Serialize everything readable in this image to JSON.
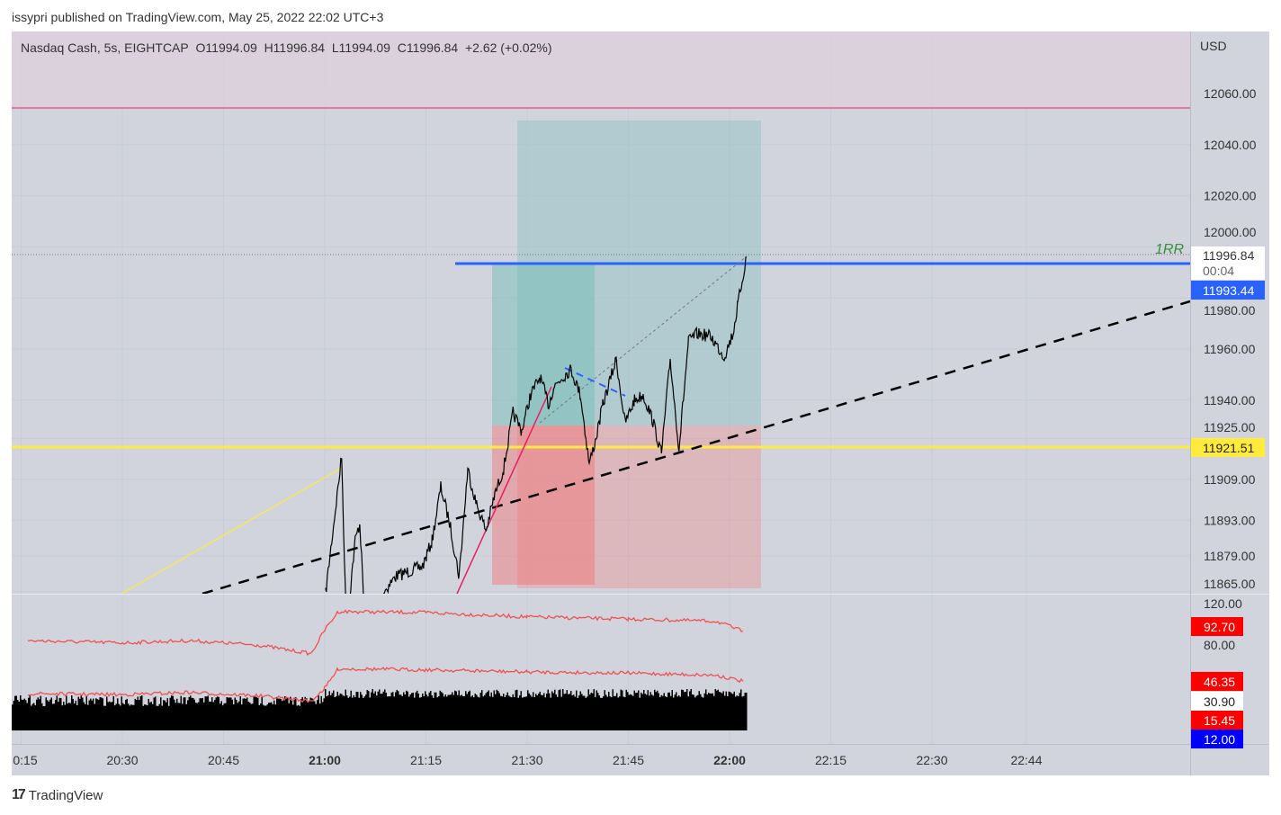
{
  "header": {
    "published": "issypri published on TradingView.com, May 25, 2022 22:02 UTC+3"
  },
  "legend": {
    "symbol": "Nasdaq Cash, 5s, EIGHTCAP",
    "open": "O11994.09",
    "high": "H11996.84",
    "low": "L11994.09",
    "close": "C11996.84",
    "change": "+2.62 (+0.02%)"
  },
  "footer": {
    "brand": "TradingView"
  },
  "colors": {
    "bg": "#d1d4dc",
    "yellow": "#ffeb3b",
    "blue": "#2962ff",
    "red": "#ff0000",
    "price": "#000000"
  },
  "chart_data": {
    "type": "line",
    "title": "Nasdaq Cash, 5s, EIGHTCAP",
    "currency": "USD",
    "x_unit": "minutes after 20:00",
    "xlim": [
      16,
      160
    ],
    "ylim": [
      11865,
      12080
    ],
    "x_ticks": [
      {
        "t": 15,
        "label": "0:15"
      },
      {
        "t": 30,
        "label": "20:30"
      },
      {
        "t": 45,
        "label": "20:45"
      },
      {
        "t": 60,
        "label": "21:00",
        "bold": true
      },
      {
        "t": 75,
        "label": "21:15"
      },
      {
        "t": 90,
        "label": "21:30"
      },
      {
        "t": 105,
        "label": "21:45"
      },
      {
        "t": 120,
        "label": "22:00",
        "bold": true
      },
      {
        "t": 135,
        "label": "22:15"
      },
      {
        "t": 150,
        "label": "22:30"
      },
      {
        "t": 164,
        "label": "22:44"
      }
    ],
    "y_ticks": [
      "12060.00",
      "12040.00",
      "12020.00",
      "12000.00",
      "11980.00",
      "11960.00",
      "11940.00",
      "11925.00",
      "11909.00",
      "11893.00",
      "11879.00",
      "11865.00"
    ],
    "price_series": {
      "x": [
        60.1,
        62.5,
        63.2,
        64.5,
        65.2,
        65.9,
        70.5,
        74.5,
        75.9,
        77.2,
        78.5,
        79.9,
        81.2,
        82.5,
        83.9,
        85.2,
        86.5,
        87.9,
        89.2,
        90.5,
        91.9,
        93.2,
        93.9,
        95.2,
        96.5,
        97.9,
        99.2,
        100.1,
        101.2,
        103.2,
        104.5,
        105.9,
        107.2,
        108.5,
        109.9,
        111.2,
        112.5,
        113.9,
        115.2,
        117.2,
        119.2,
        120.5,
        121.2,
        122.5
      ],
      "y": [
        11864,
        11918,
        11850,
        11885,
        11892,
        11855,
        11871,
        11875,
        11885,
        11906,
        11892,
        11871,
        11913,
        11899,
        11889,
        11903,
        11913,
        11935,
        11928,
        11942,
        11949,
        11938,
        11945,
        11949,
        11952,
        11942,
        11915,
        11924,
        11938,
        11956,
        11931,
        11940,
        11942,
        11933,
        11919,
        11956,
        11921,
        11963,
        11966,
        11965,
        11957,
        11966,
        11977,
        11996
      ]
    },
    "annotations": {
      "rr_label": "1RR"
    },
    "price_labels": {
      "last": "11996.84",
      "countdown": "00:04",
      "blue_level": "11993.44",
      "yellow_level": "11921.51"
    },
    "indicator": {
      "y_ticks": [
        "120.00",
        "80.00"
      ],
      "ylim": [
        0,
        120
      ],
      "upper_line": {
        "x": [
          16,
          30,
          40,
          50,
          58,
          60,
          62,
          75,
          90,
          105,
          118,
          122
        ],
        "y": [
          84,
          82,
          84,
          80,
          72,
          94,
          111,
          110,
          106,
          104,
          102,
          92.7
        ]
      },
      "lower_line": {
        "x": [
          16,
          30,
          40,
          50,
          58,
          60,
          62,
          75,
          90,
          105,
          118,
          122
        ],
        "y": [
          35,
          34,
          36,
          33,
          28,
          40,
          58,
          57,
          55,
          54,
          52,
          46.35
        ]
      },
      "labels": [
        {
          "value": "92.70",
          "color": "#ff0000"
        },
        {
          "value": "46.35",
          "color": "#ff0000"
        },
        {
          "value": "30.90",
          "color": "#ffffff"
        },
        {
          "value": "15.45",
          "color": "#ff0000"
        },
        {
          "value": "12.00",
          "color": "#0000ff"
        }
      ]
    }
  }
}
